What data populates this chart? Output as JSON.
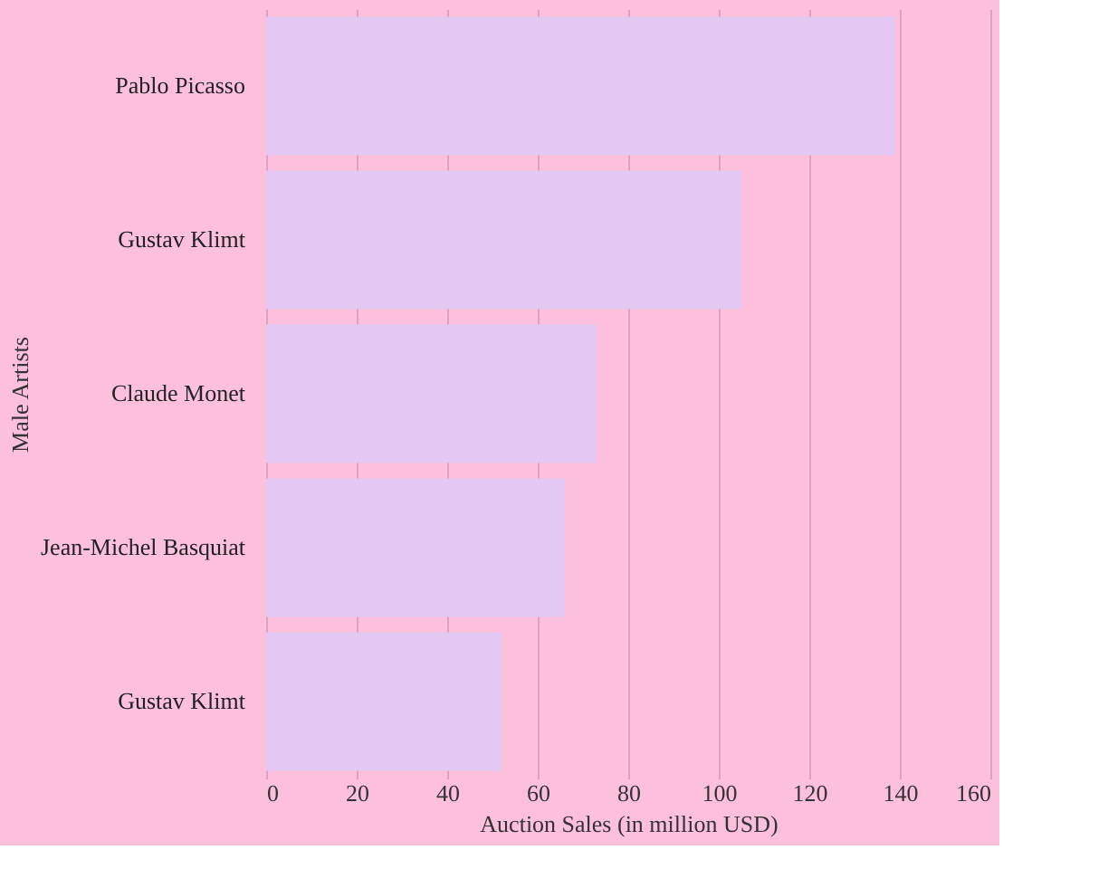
{
  "chart_data": {
    "type": "bar",
    "orientation": "horizontal",
    "categories": [
      "Pablo Picasso",
      "Gustav Klimt",
      "Claude Monet",
      "Jean-Michel Basquiat",
      "Gustav Klimt"
    ],
    "values": [
      139,
      105,
      73,
      66,
      52
    ],
    "color": "#e2c8f2",
    "xlabel": "Auction Sales (in million USD)",
    "ylabel": "Male Artists",
    "xlim": [
      0,
      160
    ],
    "xticks": [
      0,
      20,
      40,
      60,
      80,
      100,
      120,
      140,
      160
    ],
    "grid": "x"
  }
}
